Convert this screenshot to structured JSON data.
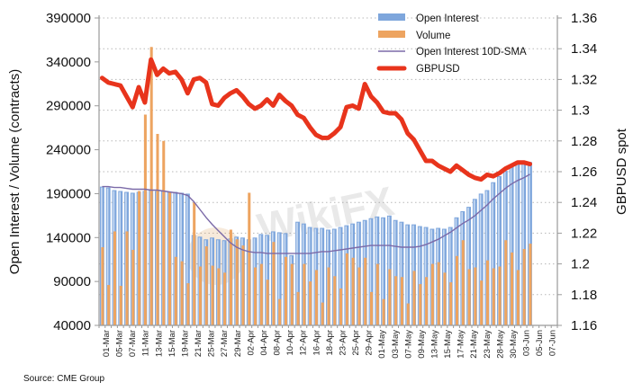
{
  "chart_data": {
    "type": "bar",
    "title": "",
    "source": "Source: CME Group",
    "ylabel": "Open Interest / Volume (contracts)",
    "y2label": "GBPUSD spot",
    "ylim": [
      40000,
      390000
    ],
    "y2lim": [
      1.16,
      1.36
    ],
    "yticks": [
      "390000",
      "340000",
      "290000",
      "240000",
      "190000",
      "140000",
      "90000",
      "40000"
    ],
    "y2ticks": [
      "1.36",
      "1.34",
      "1.32",
      "1.3",
      "1.28",
      "1.26",
      "1.24",
      "1.22",
      "1.2",
      "1.18",
      "1.16"
    ],
    "xticklabels": [
      "01-Mar",
      "05-Mar",
      "07-Mar",
      "11-Mar",
      "13-Mar",
      "15-Mar",
      "19-Mar",
      "21-Mar",
      "25-Mar",
      "27-Mar",
      "29-Mar",
      "02-Apr",
      "04-Apr",
      "08-Apr",
      "10-Apr",
      "12-Apr",
      "16-Apr",
      "18-Apr",
      "23-Apr",
      "25-Apr",
      "29-Apr",
      "01-May",
      "03-May",
      "07-May",
      "09-May",
      "13-May",
      "15-May",
      "17-May",
      "21-May",
      "23-May",
      "28-May",
      "30-May",
      "03-Jun",
      "05-Jun",
      "07-Jun"
    ],
    "grid": true,
    "legend_position": "top-right",
    "legend": [
      "Open Interest",
      "Volume",
      "Open Interest 10D-SMA",
      "GBPUSD"
    ],
    "colors": {
      "open_interest": "#7ea6dc",
      "volume": "#eda460",
      "sma": "#7b6aa8",
      "gbpusd": "#e8341c",
      "grid": "#b8b8b8",
      "axis": "#9a9a9a"
    },
    "series": [
      {
        "name": "Open Interest",
        "axis": "left",
        "values": [
          198000,
          197000,
          194000,
          193000,
          192000,
          191000,
          192000,
          193000,
          194000,
          193000,
          193000,
          192000,
          192000,
          191000,
          190000,
          143000,
          141000,
          138000,
          140000,
          138000,
          137000,
          139000,
          141000,
          140000,
          138000,
          140000,
          144000,
          143000,
          147000,
          146000,
          145000,
          120000,
          158000,
          156000,
          152000,
          151000,
          151000,
          149000,
          150000,
          152000,
          154000,
          156000,
          158000,
          160000,
          162000,
          164000,
          163000,
          165000,
          160000,
          158000,
          155000,
          155000,
          153000,
          152000,
          150000,
          151000,
          150000,
          152000,
          163000,
          170000,
          175000,
          184000,
          190000,
          194000,
          203000,
          210000,
          216000,
          222000,
          227000,
          227000,
          226000
        ]
      },
      {
        "name": "Volume",
        "axis": "left",
        "values": [
          129000,
          86000,
          147000,
          85000,
          147000,
          126000,
          193000,
          280000,
          357000,
          258000,
          250000,
          192000,
          118000,
          113000,
          88000,
          180000,
          107000,
          130000,
          108000,
          105000,
          100000,
          149000,
          138000,
          131000,
          191000,
          106000,
          110000,
          92000,
          135000,
          70000,
          118000,
          110000,
          78000,
          110000,
          90000,
          103000,
          66000,
          106000,
          96000,
          82000,
          122000,
          117000,
          106000,
          117000,
          78000,
          110000,
          70000,
          104000,
          96000,
          95000,
          65000,
          102000,
          87000,
          95000,
          110000,
          112000,
          100000,
          89000,
          119000,
          137000,
          104000,
          106000,
          91000,
          114000,
          105000,
          107000,
          137000,
          123000,
          103000,
          127000,
          133000
        ]
      },
      {
        "name": "Open Interest 10D-SMA",
        "axis": "left",
        "values": [
          198000,
          198000,
          197000,
          197000,
          196000,
          195000,
          195000,
          195000,
          194000,
          194000,
          193000,
          192000,
          191000,
          190000,
          188000,
          181000,
          172000,
          163000,
          155000,
          148000,
          141000,
          134000,
          129000,
          126000,
          124000,
          123000,
          123000,
          122000,
          122000,
          122000,
          122000,
          122000,
          122000,
          122000,
          122000,
          123000,
          124000,
          124000,
          125000,
          126000,
          127000,
          128000,
          129000,
          130000,
          131000,
          131000,
          131000,
          131000,
          130000,
          129000,
          129000,
          129000,
          130000,
          132000,
          135000,
          138000,
          142000,
          146000,
          151000,
          156000,
          160000,
          165000,
          171000,
          177000,
          184000,
          190000,
          196000,
          201000,
          205000,
          208000,
          212000
        ]
      },
      {
        "name": "GBPUSD",
        "axis": "right",
        "values": [
          1.321,
          1.318,
          1.317,
          1.316,
          1.309,
          1.302,
          1.315,
          1.305,
          1.333,
          1.323,
          1.327,
          1.324,
          1.325,
          1.32,
          1.311,
          1.32,
          1.321,
          1.318,
          1.304,
          1.303,
          1.308,
          1.311,
          1.313,
          1.309,
          1.304,
          1.301,
          1.303,
          1.307,
          1.303,
          1.31,
          1.306,
          1.303,
          1.297,
          1.295,
          1.289,
          1.284,
          1.282,
          1.282,
          1.285,
          1.289,
          1.302,
          1.303,
          1.301,
          1.317,
          1.309,
          1.305,
          1.299,
          1.298,
          1.298,
          1.294,
          1.285,
          1.281,
          1.274,
          1.267,
          1.267,
          1.264,
          1.262,
          1.26,
          1.264,
          1.261,
          1.258,
          1.256,
          1.255,
          1.258,
          1.257,
          1.259,
          1.262,
          1.264,
          1.266,
          1.266,
          1.265
        ]
      }
    ],
    "n_slots": 75
  }
}
